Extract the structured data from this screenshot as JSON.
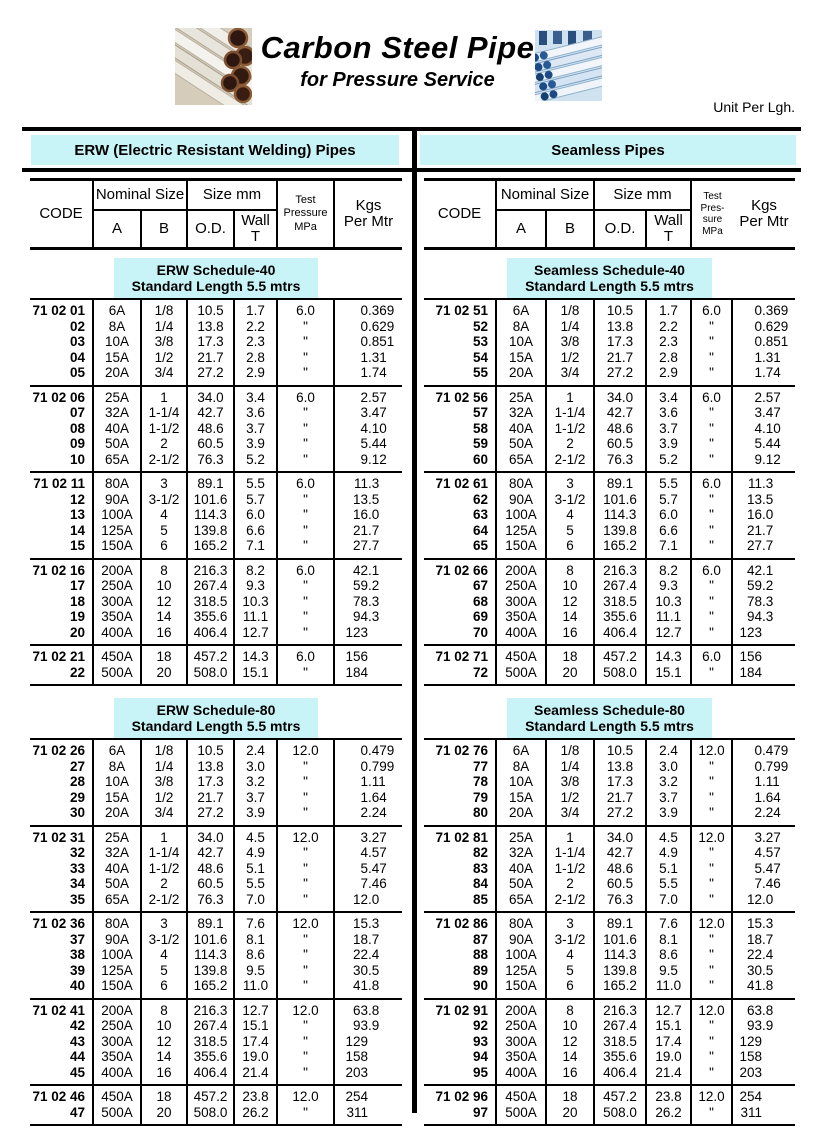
{
  "header": {
    "title": "Carbon Steel Pipe",
    "subtitle": "for Pressure Service",
    "unit_note": "Unit Per Lgh.",
    "left_photo": "bundle of carbon steel pipes",
    "right_photo": "stacked blue coated pipes"
  },
  "colors": {
    "banner_cyan": "#c8f4f8",
    "line_black": "#000000"
  },
  "tables": [
    {
      "id": "erw",
      "banner": "ERW (Electric Resistant Welding) Pipes",
      "columns": {
        "code": "CODE",
        "nominal": "Nominal Size",
        "size": "Size mm",
        "a": "A",
        "b": "B",
        "od": "O.D.",
        "wall": "Wall\nT",
        "test": "Test\nPressure\nMPa",
        "kgs": "Kgs\nPer Mtr"
      },
      "sections": [
        {
          "schedule_title": "ERW Schedule-40",
          "schedule_sub": "Standard Length 5.5 mtrs",
          "blocks": [
            [
              [
                "71 02 01",
                "6A",
                "1/8",
                "10.5",
                "1.7",
                "6.0",
                "0.369"
              ],
              [
                "02",
                "8A",
                "1/4",
                "13.8",
                "2.2",
                "\"",
                "0.629"
              ],
              [
                "03",
                "10A",
                "3/8",
                "17.3",
                "2.3",
                "\"",
                "0.851"
              ],
              [
                "04",
                "15A",
                "1/2",
                "21.7",
                "2.8",
                "\"",
                "1.31"
              ],
              [
                "05",
                "20A",
                "3/4",
                "27.2",
                "2.9",
                "\"",
                "1.74"
              ]
            ],
            [
              [
                "71 02 06",
                "25A",
                "1",
                "34.0",
                "3.4",
                "6.0",
                "2.57"
              ],
              [
                "07",
                "32A",
                "1-1/4",
                "42.7",
                "3.6",
                "\"",
                "3.47"
              ],
              [
                "08",
                "40A",
                "1-1/2",
                "48.6",
                "3.7",
                "\"",
                "4.10"
              ],
              [
                "09",
                "50A",
                "2",
                "60.5",
                "3.9",
                "\"",
                "5.44"
              ],
              [
                "10",
                "65A",
                "2-1/2",
                "76.3",
                "5.2",
                "\"",
                "9.12"
              ]
            ],
            [
              [
                "71 02 11",
                "80A",
                "3",
                "89.1",
                "5.5",
                "6.0",
                "11.3"
              ],
              [
                "12",
                "90A",
                "3-1/2",
                "101.6",
                "5.7",
                "\"",
                "13.5"
              ],
              [
                "13",
                "100A",
                "4",
                "114.3",
                "6.0",
                "\"",
                "16.0"
              ],
              [
                "14",
                "125A",
                "5",
                "139.8",
                "6.6",
                "\"",
                "21.7"
              ],
              [
                "15",
                "150A",
                "6",
                "165.2",
                "7.1",
                "\"",
                "27.7"
              ]
            ],
            [
              [
                "71 02 16",
                "200A",
                "8",
                "216.3",
                "8.2",
                "6.0",
                "42.1"
              ],
              [
                "17",
                "250A",
                "10",
                "267.4",
                "9.3",
                "\"",
                "59.2"
              ],
              [
                "18",
                "300A",
                "12",
                "318.5",
                "10.3",
                "\"",
                "78.3"
              ],
              [
                "19",
                "350A",
                "14",
                "355.6",
                "11.1",
                "\"",
                "94.3"
              ],
              [
                "20",
                "400A",
                "16",
                "406.4",
                "12.7",
                "\"",
                "123"
              ]
            ],
            [
              [
                "71 02 21",
                "450A",
                "18",
                "457.2",
                "14.3",
                "6.0",
                "156"
              ],
              [
                "22",
                "500A",
                "20",
                "508.0",
                "15.1",
                "\"",
                "184"
              ]
            ]
          ]
        },
        {
          "schedule_title": "ERW Schedule-80",
          "schedule_sub": "Standard Length 5.5 mtrs",
          "blocks": [
            [
              [
                "71 02 26",
                "6A",
                "1/8",
                "10.5",
                "2.4",
                "12.0",
                "0.479"
              ],
              [
                "27",
                "8A",
                "1/4",
                "13.8",
                "3.0",
                "\"",
                "0.799"
              ],
              [
                "28",
                "10A",
                "3/8",
                "17.3",
                "3.2",
                "\"",
                "1.11"
              ],
              [
                "29",
                "15A",
                "1/2",
                "21.7",
                "3.7",
                "\"",
                "1.64"
              ],
              [
                "30",
                "20A",
                "3/4",
                "27.2",
                "3.9",
                "\"",
                "2.24"
              ]
            ],
            [
              [
                "71 02 31",
                "25A",
                "1",
                "34.0",
                "4.5",
                "12.0",
                "3.27"
              ],
              [
                "32",
                "32A",
                "1-1/4",
                "42.7",
                "4.9",
                "\"",
                "4.57"
              ],
              [
                "33",
                "40A",
                "1-1/2",
                "48.6",
                "5.1",
                "\"",
                "5.47"
              ],
              [
                "34",
                "50A",
                "2",
                "60.5",
                "5.5",
                "\"",
                "7.46"
              ],
              [
                "35",
                "65A",
                "2-1/2",
                "76.3",
                "7.0",
                "\"",
                "12.0"
              ]
            ],
            [
              [
                "71 02 36",
                "80A",
                "3",
                "89.1",
                "7.6",
                "12.0",
                "15.3"
              ],
              [
                "37",
                "90A",
                "3-1/2",
                "101.6",
                "8.1",
                "\"",
                "18.7"
              ],
              [
                "38",
                "100A",
                "4",
                "114.3",
                "8.6",
                "\"",
                "22.4"
              ],
              [
                "39",
                "125A",
                "5",
                "139.8",
                "9.5",
                "\"",
                "30.5"
              ],
              [
                "40",
                "150A",
                "6",
                "165.2",
                "11.0",
                "\"",
                "41.8"
              ]
            ],
            [
              [
                "71 02 41",
                "200A",
                "8",
                "216.3",
                "12.7",
                "12.0",
                "63.8"
              ],
              [
                "42",
                "250A",
                "10",
                "267.4",
                "15.1",
                "\"",
                "93.9"
              ],
              [
                "43",
                "300A",
                "12",
                "318.5",
                "17.4",
                "\"",
                "129"
              ],
              [
                "44",
                "350A",
                "14",
                "355.6",
                "19.0",
                "\"",
                "158"
              ],
              [
                "45",
                "400A",
                "16",
                "406.4",
                "21.4",
                "\"",
                "203"
              ]
            ],
            [
              [
                "71 02 46",
                "450A",
                "18",
                "457.2",
                "23.8",
                "12.0",
                "254"
              ],
              [
                "47",
                "500A",
                "20",
                "508.0",
                "26.2",
                "\"",
                "311"
              ]
            ]
          ]
        }
      ]
    },
    {
      "id": "seamless",
      "banner": "Seamless Pipes",
      "columns": {
        "code": "CODE",
        "nominal": "Nominal Size",
        "size": "Size mm",
        "a": "A",
        "b": "B",
        "od": "O.D.",
        "wall": "Wall\nT",
        "test": "Test\nPres-\nsure\nMPa",
        "kgs": "Kgs\nPer Mtr"
      },
      "sections": [
        {
          "schedule_title": "Seamless Schedule-40",
          "schedule_sub": "Standard Length 5.5 mtrs",
          "blocks": [
            [
              [
                "71 02 51",
                "6A",
                "1/8",
                "10.5",
                "1.7",
                "6.0",
                "0.369"
              ],
              [
                "52",
                "8A",
                "1/4",
                "13.8",
                "2.2",
                "\"",
                "0.629"
              ],
              [
                "53",
                "10A",
                "3/8",
                "17.3",
                "2.3",
                "\"",
                "0.851"
              ],
              [
                "54",
                "15A",
                "1/2",
                "21.7",
                "2.8",
                "\"",
                "1.31"
              ],
              [
                "55",
                "20A",
                "3/4",
                "27.2",
                "2.9",
                "\"",
                "1.74"
              ]
            ],
            [
              [
                "71 02 56",
                "25A",
                "1",
                "34.0",
                "3.4",
                "6.0",
                "2.57"
              ],
              [
                "57",
                "32A",
                "1-1/4",
                "42.7",
                "3.6",
                "\"",
                "3.47"
              ],
              [
                "58",
                "40A",
                "1-1/2",
                "48.6",
                "3.7",
                "\"",
                "4.10"
              ],
              [
                "59",
                "50A",
                "2",
                "60.5",
                "3.9",
                "\"",
                "5.44"
              ],
              [
                "60",
                "65A",
                "2-1/2",
                "76.3",
                "5.2",
                "\"",
                "9.12"
              ]
            ],
            [
              [
                "71 02 61",
                "80A",
                "3",
                "89.1",
                "5.5",
                "6.0",
                "11.3"
              ],
              [
                "62",
                "90A",
                "3-1/2",
                "101.6",
                "5.7",
                "\"",
                "13.5"
              ],
              [
                "63",
                "100A",
                "4",
                "114.3",
                "6.0",
                "\"",
                "16.0"
              ],
              [
                "64",
                "125A",
                "5",
                "139.8",
                "6.6",
                "\"",
                "21.7"
              ],
              [
                "65",
                "150A",
                "6",
                "165.2",
                "7.1",
                "\"",
                "27.7"
              ]
            ],
            [
              [
                "71 02 66",
                "200A",
                "8",
                "216.3",
                "8.2",
                "6.0",
                "42.1"
              ],
              [
                "67",
                "250A",
                "10",
                "267.4",
                "9.3",
                "\"",
                "59.2"
              ],
              [
                "68",
                "300A",
                "12",
                "318.5",
                "10.3",
                "\"",
                "78.3"
              ],
              [
                "69",
                "350A",
                "14",
                "355.6",
                "11.1",
                "\"",
                "94.3"
              ],
              [
                "70",
                "400A",
                "16",
                "406.4",
                "12.7",
                "\"",
                "123"
              ]
            ],
            [
              [
                "71 02 71",
                "450A",
                "18",
                "457.2",
                "14.3",
                "6.0",
                "156"
              ],
              [
                "72",
                "500A",
                "20",
                "508.0",
                "15.1",
                "\"",
                "184"
              ]
            ]
          ]
        },
        {
          "schedule_title": "Seamless Schedule-80",
          "schedule_sub": "Standard Length 5.5 mtrs",
          "blocks": [
            [
              [
                "71 02 76",
                "6A",
                "1/8",
                "10.5",
                "2.4",
                "12.0",
                "0.479"
              ],
              [
                "77",
                "8A",
                "1/4",
                "13.8",
                "3.0",
                "\"",
                "0.799"
              ],
              [
                "78",
                "10A",
                "3/8",
                "17.3",
                "3.2",
                "\"",
                "1.11"
              ],
              [
                "79",
                "15A",
                "1/2",
                "21.7",
                "3.7",
                "\"",
                "1.64"
              ],
              [
                "80",
                "20A",
                "3/4",
                "27.2",
                "3.9",
                "\"",
                "2.24"
              ]
            ],
            [
              [
                "71 02 81",
                "25A",
                "1",
                "34.0",
                "4.5",
                "12.0",
                "3.27"
              ],
              [
                "82",
                "32A",
                "1-1/4",
                "42.7",
                "4.9",
                "\"",
                "4.57"
              ],
              [
                "83",
                "40A",
                "1-1/2",
                "48.6",
                "5.1",
                "\"",
                "5.47"
              ],
              [
                "84",
                "50A",
                "2",
                "60.5",
                "5.5",
                "\"",
                "7.46"
              ],
              [
                "85",
                "65A",
                "2-1/2",
                "76.3",
                "7.0",
                "\"",
                "12.0"
              ]
            ],
            [
              [
                "71 02 86",
                "80A",
                "3",
                "89.1",
                "7.6",
                "12.0",
                "15.3"
              ],
              [
                "87",
                "90A",
                "3-1/2",
                "101.6",
                "8.1",
                "\"",
                "18.7"
              ],
              [
                "88",
                "100A",
                "4",
                "114.3",
                "8.6",
                "\"",
                "22.4"
              ],
              [
                "89",
                "125A",
                "5",
                "139.8",
                "9.5",
                "\"",
                "30.5"
              ],
              [
                "90",
                "150A",
                "6",
                "165.2",
                "11.0",
                "\"",
                "41.8"
              ]
            ],
            [
              [
                "71 02 91",
                "200A",
                "8",
                "216.3",
                "12.7",
                "12.0",
                "63.8"
              ],
              [
                "92",
                "250A",
                "10",
                "267.4",
                "15.1",
                "\"",
                "93.9"
              ],
              [
                "93",
                "300A",
                "12",
                "318.5",
                "17.4",
                "\"",
                "129"
              ],
              [
                "94",
                "350A",
                "14",
                "355.6",
                "19.0",
                "\"",
                "158"
              ],
              [
                "95",
                "400A",
                "16",
                "406.4",
                "21.4",
                "\"",
                "203"
              ]
            ],
            [
              [
                "71 02 96",
                "450A",
                "18",
                "457.2",
                "23.8",
                "12.0",
                "254"
              ],
              [
                "97",
                "500A",
                "20",
                "508.0",
                "26.2",
                "\"",
                "311"
              ]
            ]
          ]
        }
      ]
    }
  ]
}
